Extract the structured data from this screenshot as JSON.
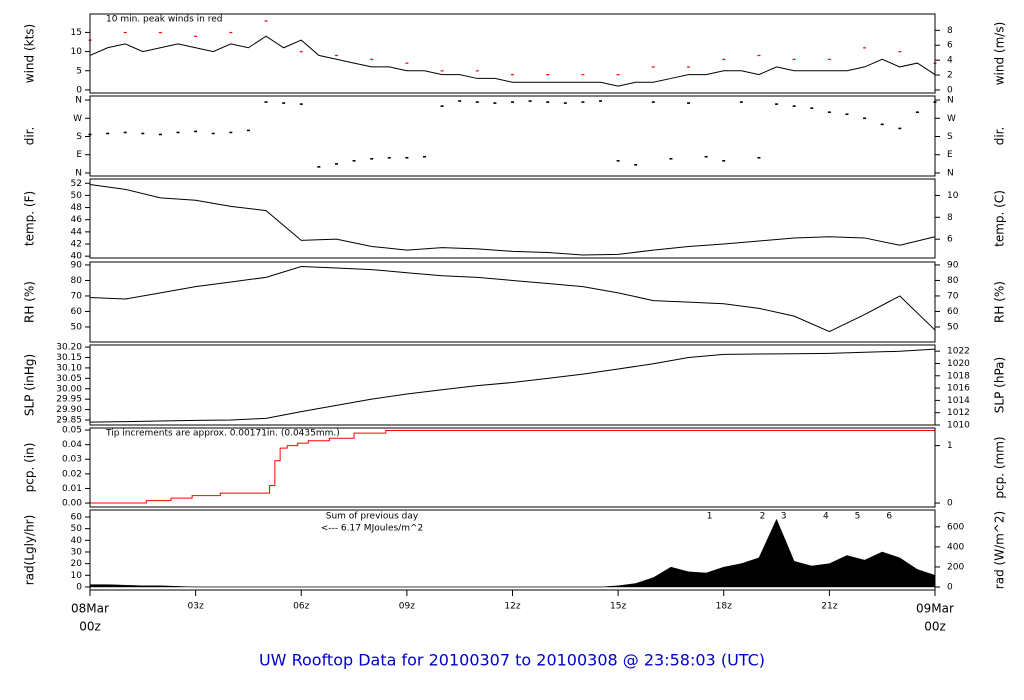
{
  "title": "UW Rooftop Data for 20100307  to  20100308 @ 23:58:03  (UTC)",
  "chart_data": [
    {
      "type": "line",
      "ylabel": "wind (kts)",
      "y2label": "wind (m/s)",
      "color": "#000000",
      "peak_color": "#ff0000",
      "annotations": [
        "10 min. peak winds in red"
      ],
      "x": [
        0,
        0.5,
        1,
        1.5,
        2,
        2.5,
        3,
        3.5,
        4,
        4.5,
        5,
        5.5,
        6,
        6.5,
        7,
        7.5,
        8,
        8.5,
        9,
        9.5,
        10,
        10.5,
        11,
        11.5,
        12,
        12.5,
        13,
        13.5,
        14,
        14.5,
        15,
        15.5,
        16,
        16.5,
        17,
        17.5,
        18,
        18.5,
        19,
        19.5,
        20,
        20.5,
        21,
        21.5,
        22,
        22.5,
        23,
        23.5,
        24
      ],
      "values": [
        9,
        11,
        12,
        10,
        11,
        12,
        11,
        10,
        12,
        11,
        14,
        11,
        13,
        9,
        8,
        7,
        6,
        6,
        5,
        5,
        4,
        4,
        3,
        3,
        2,
        2,
        2,
        2,
        2,
        2,
        1,
        2,
        2,
        3,
        4,
        4,
        5,
        5,
        4,
        6,
        5,
        5,
        5,
        5,
        6,
        8,
        6,
        7,
        4
      ],
      "peak_x": [
        0,
        1,
        2,
        3,
        4,
        5,
        6,
        7,
        8,
        9,
        10,
        11,
        12,
        13,
        14,
        15,
        16,
        17,
        18,
        19,
        20,
        21,
        22,
        23,
        24
      ],
      "peak_values": [
        13,
        15,
        15,
        14,
        15,
        18,
        10,
        9,
        8,
        7,
        5,
        5,
        4,
        4,
        4,
        4,
        6,
        6,
        8,
        9,
        8,
        8,
        11,
        10,
        7
      ],
      "xlim": [
        0,
        24
      ],
      "ylim": [
        -0.8,
        19.8
      ],
      "yticks": [
        0,
        5,
        10,
        15
      ],
      "y2lim": [
        -0.41,
        10.19
      ],
      "y2ticks": [
        0,
        2,
        4,
        6,
        8
      ]
    },
    {
      "type": "scatter",
      "ylabel": "dir.",
      "y2label": "dir.",
      "color": "#000000",
      "x": [
        0,
        0.5,
        1,
        1.5,
        2,
        2.5,
        3,
        3.5,
        4,
        4.5,
        5,
        5.5,
        6,
        6.5,
        7,
        7.5,
        8,
        8.5,
        9,
        9.5,
        10,
        10.5,
        11,
        11.5,
        12,
        12.5,
        13,
        13.5,
        14,
        14.5,
        15,
        15.5,
        16,
        16.5,
        17,
        17.5,
        18,
        18.5,
        19,
        19.5,
        20,
        20.5,
        21,
        21.5,
        22,
        22.5,
        23,
        23.5,
        24
      ],
      "values": [
        190,
        195,
        200,
        195,
        190,
        200,
        205,
        195,
        200,
        210,
        350,
        345,
        340,
        30,
        45,
        60,
        70,
        75,
        75,
        80,
        330,
        355,
        350,
        345,
        350,
        355,
        350,
        345,
        350,
        355,
        60,
        40,
        350,
        70,
        345,
        80,
        60,
        350,
        75,
        340,
        330,
        320,
        300,
        290,
        270,
        240,
        220,
        300,
        350
      ],
      "xlim": [
        0,
        24
      ],
      "ylim": [
        -15,
        380
      ],
      "yticks": [
        {
          "value": 0,
          "label": "N"
        },
        {
          "value": 90,
          "label": "E"
        },
        {
          "value": 180,
          "label": "S"
        },
        {
          "value": 270,
          "label": "W"
        },
        {
          "value": 360,
          "label": "N"
        }
      ],
      "y2lim": [
        -15,
        380
      ],
      "y2ticks": [
        {
          "value": 0,
          "label": "N"
        },
        {
          "value": 90,
          "label": "E"
        },
        {
          "value": 180,
          "label": "S"
        },
        {
          "value": 270,
          "label": "W"
        },
        {
          "value": 360,
          "label": "N"
        }
      ]
    },
    {
      "type": "line",
      "ylabel": "temp. (F)",
      "y2label": "temp. (C)",
      "color": "#000000",
      "x": [
        0,
        1,
        2,
        3,
        4,
        5,
        6,
        7,
        8,
        9,
        10,
        11,
        12,
        13,
        14,
        15,
        16,
        17,
        18,
        19,
        20,
        21,
        22,
        23,
        24
      ],
      "values": [
        51.8,
        51,
        49.6,
        49.2,
        48.2,
        47.5,
        42.6,
        42.8,
        41.6,
        41,
        41.4,
        41.2,
        40.8,
        40.6,
        40.2,
        40.3,
        41,
        41.6,
        42,
        42.5,
        43,
        43.2,
        43,
        41.8,
        43.2
      ],
      "xlim": [
        0,
        24
      ],
      "ylim": [
        39.7,
        52.7
      ],
      "yticks": [
        40,
        42,
        44,
        46,
        48,
        50,
        52
      ],
      "y2lim": [
        4.28,
        11.5
      ],
      "y2ticks": [
        6,
        8,
        10
      ]
    },
    {
      "type": "line",
      "ylabel": "RH (%)",
      "y2label": "RH (%)",
      "color": "#000000",
      "x": [
        0,
        1,
        2,
        3,
        4,
        5,
        6,
        7,
        8,
        9,
        10,
        11,
        12,
        13,
        14,
        15,
        16,
        17,
        18,
        19,
        20,
        21,
        22,
        23,
        24
      ],
      "values": [
        69,
        68,
        72,
        76,
        79,
        82,
        89,
        88,
        87,
        85,
        83,
        82,
        80,
        78,
        76,
        72,
        67,
        66,
        65,
        62,
        57,
        47,
        58,
        70,
        48
      ],
      "xlim": [
        0,
        24
      ],
      "ylim": [
        40.3,
        91.9
      ],
      "yticks": [
        50,
        60,
        70,
        80,
        90
      ],
      "y2lim": [
        40.3,
        91.9
      ],
      "y2ticks": [
        50,
        60,
        70,
        80,
        90
      ]
    },
    {
      "type": "line",
      "ylabel": "SLP (inHg)",
      "y2label": "SLP (hPa)",
      "color": "#000000",
      "x": [
        0,
        1,
        2,
        3,
        4,
        5,
        6,
        7,
        8,
        9,
        10,
        11,
        12,
        13,
        14,
        15,
        16,
        17,
        18,
        19,
        20,
        21,
        22,
        23,
        24
      ],
      "values": [
        29.84,
        29.842,
        29.845,
        29.848,
        29.85,
        29.858,
        29.89,
        29.92,
        29.95,
        29.975,
        29.995,
        30.015,
        30.03,
        30.05,
        30.07,
        30.095,
        30.12,
        30.15,
        30.165,
        30.167,
        30.168,
        30.17,
        30.175,
        30.18,
        30.19
      ],
      "xlim": [
        0,
        24
      ],
      "ylim": [
        29.826,
        30.21
      ],
      "yticks": [
        29.85,
        {
          "value": 29.9,
          "label": "29.90"
        },
        29.95,
        {
          "value": 30,
          "label": "30.00"
        },
        30.05,
        {
          "value": 30.1,
          "label": "30.10"
        },
        30.15,
        {
          "value": 30.2,
          "label": "30.20"
        }
      ],
      "y2lim": [
        1010,
        1023
      ],
      "y2ticks": [
        1010,
        1012,
        1014,
        1016,
        1018,
        1020,
        1022
      ]
    },
    {
      "type": "line",
      "step": "post",
      "ylabel": "pcp. (in)",
      "y2label": "pcp. (mm)",
      "color": "#ff0000",
      "annotations": [
        "Tip increments are approx. 0.00171in. (0.0435mm.)"
      ],
      "x": [
        0,
        1.6,
        2.3,
        2.9,
        3.7,
        5.1,
        5.25,
        5.4,
        5.6,
        5.9,
        6.2,
        6.8,
        7.5,
        8.4,
        24
      ],
      "values": [
        0,
        0.0017,
        0.0034,
        0.0051,
        0.0068,
        0.012,
        0.029,
        0.0376,
        0.0393,
        0.041,
        0.0427,
        0.0444,
        0.0479,
        0.0497,
        0.0497
      ],
      "xlim": [
        0,
        24
      ],
      "ylim": [
        -0.0027,
        0.0514
      ],
      "yticks": [
        {
          "value": 0,
          "label": "0.00"
        },
        0.01,
        0.02,
        0.03,
        0.04,
        0.05
      ],
      "y2lim": [
        -0.069,
        1.306
      ],
      "y2ticks": [
        0,
        1
      ]
    },
    {
      "type": "area",
      "ylabel": "rad(Lgly/hr)",
      "y2label": "rad (W/m^2)",
      "color": "#000000",
      "annotations": [
        "Sum of previous day",
        "<--- 6.17 MJoules/m^2"
      ],
      "annotation_color": "#9900cc",
      "markers": [
        {
          "x": 17.6,
          "label": 1
        },
        {
          "x": 19.1,
          "label": 2
        },
        {
          "x": 19.7,
          "label": 3
        },
        {
          "x": 20.9,
          "label": 4
        },
        {
          "x": 21.8,
          "label": 5
        },
        {
          "x": 22.7,
          "label": 6
        }
      ],
      "x": [
        0,
        0.5,
        1,
        1.5,
        2,
        2.5,
        3,
        3.5,
        4,
        4.5,
        5,
        5.5,
        6,
        6.5,
        7,
        7.5,
        8,
        8.5,
        9,
        9.5,
        10,
        10.5,
        11,
        11.5,
        12,
        12.5,
        13,
        13.5,
        14,
        14.5,
        15,
        15.5,
        16,
        16.5,
        17,
        17.5,
        18,
        18.5,
        19,
        19.5,
        20,
        20.5,
        21,
        21.5,
        22,
        22.5,
        23,
        23.5,
        24
      ],
      "values": [
        2,
        2,
        1.5,
        1,
        1,
        0.5,
        0,
        0,
        0,
        0,
        0,
        0,
        0,
        0,
        0,
        0,
        0,
        0,
        0,
        0,
        0,
        0,
        0,
        0,
        0,
        0,
        0,
        0,
        0,
        0,
        1,
        3,
        8,
        17,
        13,
        12,
        17,
        20,
        25,
        58,
        22,
        18,
        20,
        27,
        23,
        30,
        25,
        15,
        10
      ],
      "xlim": [
        0,
        24
      ],
      "ylim": [
        -2.6,
        66
      ],
      "yticks": [
        0,
        10,
        20,
        30,
        40,
        50,
        60
      ],
      "y2lim": [
        -30,
        768
      ],
      "y2ticks": [
        0,
        200,
        400,
        600
      ],
      "xticks": [
        {
          "value": 0,
          "label": "00z"
        },
        {
          "value": 3,
          "label": "03z"
        },
        {
          "value": 6,
          "label": "06z"
        },
        {
          "value": 9,
          "label": "09z"
        },
        {
          "value": 12,
          "label": "12z"
        },
        {
          "value": 15,
          "label": "15z"
        },
        {
          "value": 18,
          "label": "18z"
        },
        {
          "value": 21,
          "label": "21z"
        },
        {
          "value": 24,
          "label": "00z"
        }
      ],
      "x_date_labels": [
        {
          "value": 0,
          "label": "08Mar"
        },
        {
          "value": 24,
          "label": "09Mar"
        }
      ]
    }
  ]
}
